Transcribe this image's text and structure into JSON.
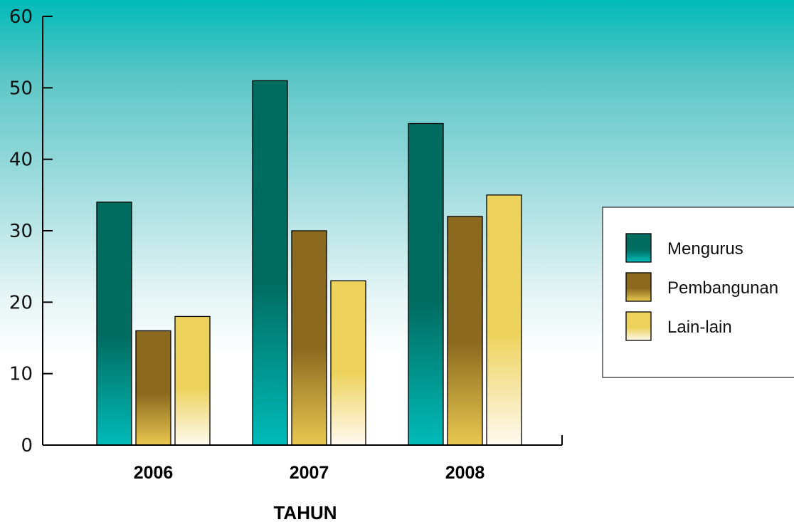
{
  "chart_data": {
    "type": "bar",
    "categories": [
      "2006",
      "2007",
      "2008"
    ],
    "series": [
      {
        "name": "Mengurus",
        "values": [
          34,
          51,
          45
        ],
        "color_top": "#006b5f",
        "color_bottom": "#00bbb8"
      },
      {
        "name": "Pembangunan",
        "values": [
          16,
          30,
          32
        ],
        "color_top": "#8b6a20",
        "color_bottom": "#e8c850"
      },
      {
        "name": "Lain-lain",
        "values": [
          18,
          23,
          35
        ],
        "color_top": "#ecd25a",
        "color_bottom": "#fffaf0"
      }
    ],
    "yticks": [
      "0",
      "10",
      "20",
      "30",
      "40",
      "50",
      "60"
    ],
    "ylim": [
      0,
      60
    ],
    "xlabel": "TAHUN",
    "ylabel": "",
    "title": "",
    "grid": false,
    "legend_position": "right"
  }
}
